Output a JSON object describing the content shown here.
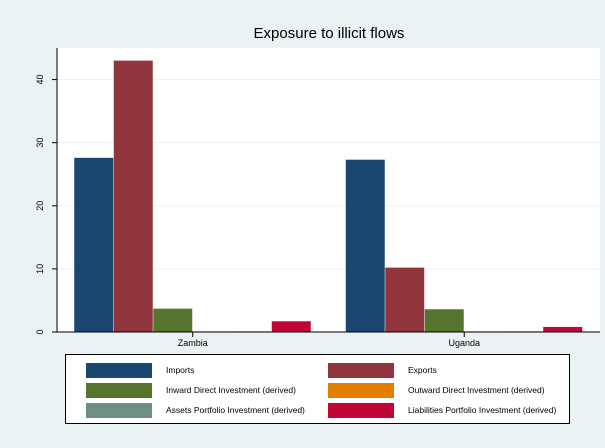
{
  "chart_data": {
    "type": "bar",
    "title": "Exposure to illicit flows",
    "xlabel": "",
    "ylabel": "",
    "categories": [
      "Zambia",
      "Uganda"
    ],
    "ylim": [
      0,
      45
    ],
    "yticks": [
      0,
      10,
      20,
      30,
      40
    ],
    "grid": true,
    "legend_position": "bottom",
    "series": [
      {
        "name": "Imports",
        "color": "#1a476f",
        "values": [
          27.6,
          27.3
        ]
      },
      {
        "name": "Exports",
        "color": "#90353b",
        "values": [
          43.0,
          10.2
        ]
      },
      {
        "name": "Inward Direct Investment (derived)",
        "color": "#55752f",
        "values": [
          3.7,
          3.6
        ]
      },
      {
        "name": "Outward Direct Investment (derived)",
        "color": "#e37e00",
        "values": [
          0.1,
          0.1
        ]
      },
      {
        "name": "Assets Portfolio Investment (derived)",
        "color": "#6e8e84",
        "values": [
          0.1,
          0.1
        ]
      },
      {
        "name": "Liabilities Portfolio Investment (derived)",
        "color": "#c10534",
        "values": [
          1.7,
          0.8
        ]
      }
    ]
  }
}
